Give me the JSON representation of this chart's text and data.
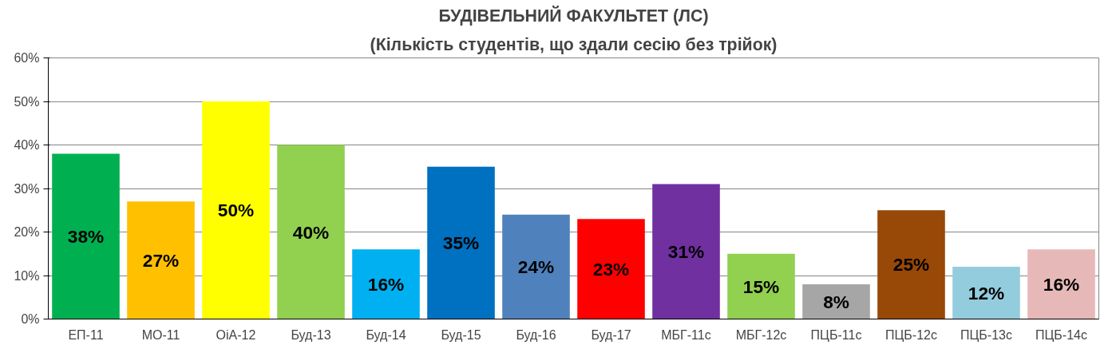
{
  "chart_data": {
    "type": "bar",
    "title": "БУДІВЕЛЬНИЙ ФАКУЛЬТЕТ (ЛС)",
    "subtitle": "(Кількість студентів, що здали сесію без трійок)",
    "categories": [
      "ЕП-11",
      "МО-11",
      "ОіА-12",
      "Буд-13",
      "Буд-14",
      "Буд-15",
      "Буд-16",
      "Буд-17",
      "МБГ-11с",
      "МБГ-12с",
      "ПЦБ-11с",
      "ПЦБ-12с",
      "ПЦБ-13с",
      "ПЦБ-14с"
    ],
    "values": [
      38,
      27,
      50,
      40,
      16,
      35,
      24,
      23,
      31,
      15,
      8,
      25,
      12,
      16
    ],
    "colors": [
      "#00b050",
      "#ffc000",
      "#ffff00",
      "#92d050",
      "#00b0f0",
      "#0070c0",
      "#4f81bd",
      "#ff0000",
      "#7030a0",
      "#92d050",
      "#a6a6a6",
      "#984807",
      "#93cddd",
      "#e6b9b8"
    ],
    "value_labels": [
      "38%",
      "27%",
      "50%",
      "40%",
      "16%",
      "35%",
      "24%",
      "23%",
      "31%",
      "15%",
      "8%",
      "25%",
      "12%",
      "16%"
    ],
    "ylim": [
      0,
      60
    ],
    "yticks": [
      {
        "value": 0,
        "label": "0%"
      },
      {
        "value": 10,
        "label": "10%"
      },
      {
        "value": 20,
        "label": "20%"
      },
      {
        "value": 30,
        "label": "30%"
      },
      {
        "value": 40,
        "label": "40%"
      },
      {
        "value": 50,
        "label": "50%"
      },
      {
        "value": 60,
        "label": "60%"
      }
    ],
    "grid": "y"
  }
}
